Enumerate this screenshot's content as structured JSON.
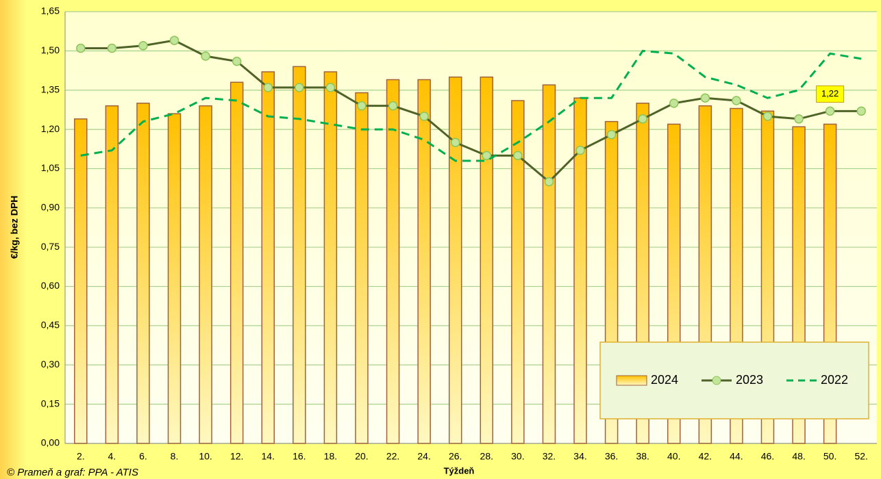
{
  "chart_data": {
    "type": "bar_line",
    "y_label": "€/kg, bez DPH",
    "x_label": "Týždeň",
    "source": "© Prameň a graf: PPA - ATIS",
    "categories": [
      "2.",
      "4.",
      "6.",
      "8.",
      "10.",
      "12.",
      "14.",
      "16.",
      "18.",
      "20.",
      "22.",
      "24.",
      "26.",
      "28.",
      "30.",
      "32.",
      "34.",
      "36.",
      "38.",
      "40.",
      "42.",
      "44.",
      "46.",
      "48.",
      "50.",
      "52."
    ],
    "series": [
      {
        "name": "2024",
        "type": "bar",
        "color": "#ffc000",
        "values": [
          1.24,
          1.29,
          1.3,
          1.26,
          1.29,
          1.38,
          1.42,
          1.44,
          1.42,
          1.34,
          1.39,
          1.39,
          1.4,
          1.4,
          1.31,
          1.37,
          1.32,
          1.23,
          1.3,
          1.22,
          1.29,
          1.28,
          1.27,
          1.21,
          1.22,
          null
        ],
        "value_labels": [
          null,
          null,
          null,
          null,
          null,
          null,
          null,
          null,
          null,
          null,
          null,
          null,
          null,
          null,
          null,
          null,
          null,
          null,
          null,
          null,
          null,
          null,
          null,
          null,
          "1,22",
          null
        ]
      },
      {
        "name": "2023",
        "type": "line",
        "color": "#4f6228",
        "values": [
          1.51,
          1.51,
          1.52,
          1.54,
          1.48,
          1.46,
          1.36,
          1.36,
          1.36,
          1.29,
          1.29,
          1.25,
          1.15,
          1.1,
          1.1,
          1.0,
          1.12,
          1.18,
          1.24,
          1.3,
          1.32,
          1.31,
          1.25,
          1.24,
          1.27,
          1.27
        ]
      },
      {
        "name": "2022",
        "type": "dashed-line",
        "color": "#00b050",
        "values": [
          1.1,
          1.12,
          1.23,
          1.26,
          1.32,
          1.31,
          1.25,
          1.24,
          1.22,
          1.2,
          1.2,
          1.16,
          1.08,
          1.08,
          1.15,
          1.23,
          1.32,
          1.32,
          1.5,
          1.49,
          1.4,
          1.37,
          1.32,
          1.35,
          1.49,
          1.47
        ]
      }
    ],
    "ylim": [
      0,
      1.65
    ],
    "yticks": [
      {
        "value": 0,
        "label": "0,00"
      },
      {
        "value": 0.15,
        "label": "0,15"
      },
      {
        "value": 0.3,
        "label": "0,30"
      },
      {
        "value": 0.45,
        "label": "0,45"
      },
      {
        "value": 0.6,
        "label": "0,60"
      },
      {
        "value": 0.75,
        "label": "0,75"
      },
      {
        "value": 0.9,
        "label": "0,90"
      },
      {
        "value": 1.05,
        "label": "1,05"
      },
      {
        "value": 1.2,
        "label": "1,20"
      },
      {
        "value": 1.35,
        "label": "1,35"
      },
      {
        "value": 1.5,
        "label": "1,50"
      },
      {
        "value": 1.65,
        "label": "1,65"
      }
    ],
    "grid": true,
    "legend_position": "lower right"
  }
}
